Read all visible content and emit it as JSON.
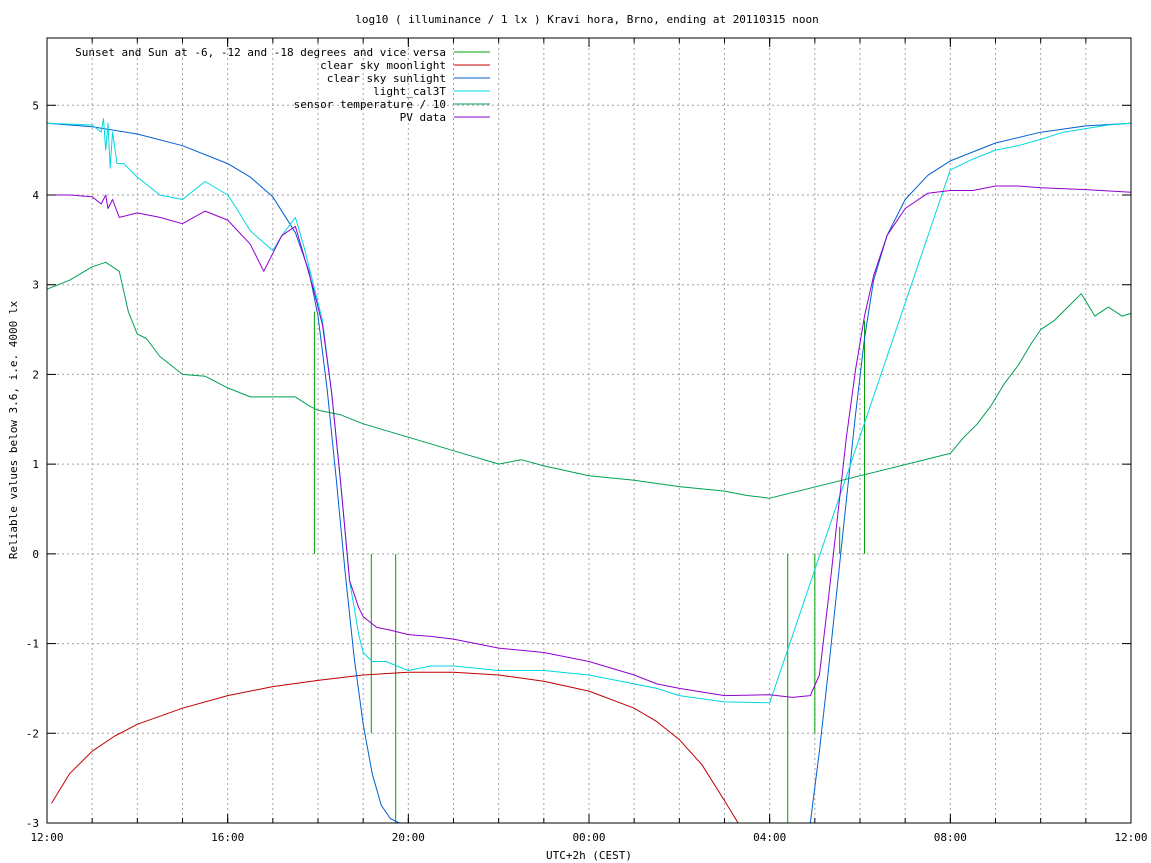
{
  "chart_data": {
    "type": "line",
    "title": "log10 ( illuminance / 1 lx ) Kravi hora, Brno, ending at 20110315 noon",
    "xlabel": "UTC+2h (CEST)",
    "ylabel": "Reliable values below 3.6, i.e. 4000 lx",
    "xlim": [
      0,
      24
    ],
    "ylim": [
      -3,
      5.75
    ],
    "x_ticks": [
      {
        "value": 0,
        "label": "12:00"
      },
      {
        "value": 4,
        "label": "16:00"
      },
      {
        "value": 8,
        "label": "20:00"
      },
      {
        "value": 12,
        "label": "00:00"
      },
      {
        "value": 16,
        "label": "04:00"
      },
      {
        "value": 20,
        "label": "08:00"
      },
      {
        "value": 24,
        "label": "12:00"
      }
    ],
    "x_minor_step": 1,
    "y_ticks": [
      -3,
      -2,
      -1,
      0,
      1,
      2,
      3,
      4,
      5
    ],
    "grid": true,
    "legend_position": "top-left",
    "series": [
      {
        "name": "Sunset and Sun at -6, -12 and -18 degrees and vice versa",
        "color": "#00a000",
        "style": "impulses",
        "impulses": [
          {
            "x": 5.92,
            "y": 2.7
          },
          {
            "x": 7.18,
            "y": -2.0
          },
          {
            "x": 7.72,
            "y": -3.0
          },
          {
            "x": 16.4,
            "y": -3.0
          },
          {
            "x": 17.0,
            "y": -2.0
          },
          {
            "x": 17.55,
            "y": 0.3
          },
          {
            "x": 18.1,
            "y": 2.6
          }
        ]
      },
      {
        "name": "clear sky moonlight",
        "color": "#c00000",
        "x": [
          0.1,
          0.5,
          1,
          1.5,
          2,
          3,
          4,
          5,
          6,
          7,
          8,
          9,
          10,
          11,
          12,
          13,
          13.5,
          14,
          14.5,
          15,
          15.3
        ],
        "y": [
          -2.78,
          -2.45,
          -2.2,
          -2.03,
          -1.9,
          -1.72,
          -1.58,
          -1.48,
          -1.41,
          -1.35,
          -1.32,
          -1.32,
          -1.35,
          -1.42,
          -1.53,
          -1.72,
          -1.87,
          -2.07,
          -2.35,
          -2.75,
          -3.0
        ]
      },
      {
        "name": "clear sky sunlight",
        "color": "#0060d0",
        "x": [
          0,
          1,
          2,
          3,
          4,
          4.5,
          5,
          5.5,
          5.8,
          6.0,
          6.2,
          6.4,
          6.6,
          6.8,
          7.0,
          7.2,
          7.4,
          7.6,
          7.8,
          16.9,
          17.1,
          17.3,
          17.5,
          17.7,
          17.9,
          18.1,
          18.3,
          18.6,
          19.0,
          19.5,
          20,
          21,
          22,
          23,
          24
        ],
        "y": [
          4.8,
          4.76,
          4.68,
          4.55,
          4.35,
          4.2,
          3.98,
          3.58,
          3.15,
          2.65,
          1.85,
          0.85,
          -0.2,
          -1.15,
          -1.9,
          -2.45,
          -2.8,
          -2.95,
          -3.0,
          -3.0,
          -2.2,
          -1.3,
          -0.35,
          0.6,
          1.55,
          2.4,
          3.05,
          3.55,
          3.95,
          4.22,
          4.38,
          4.58,
          4.7,
          4.77,
          4.8
        ]
      },
      {
        "name": "light_cal3T",
        "color": "#00d8e0",
        "x": [
          0,
          0.5,
          1.0,
          1.2,
          1.25,
          1.3,
          1.35,
          1.4,
          1.45,
          1.55,
          1.7,
          2.0,
          2.5,
          3.0,
          3.5,
          4.0,
          4.2,
          4.5,
          5.0,
          5.2,
          5.5,
          5.7,
          5.9,
          6.1,
          6.3,
          6.5,
          6.7,
          6.9,
          7.0,
          7.2,
          7.5,
          8.0,
          8.5,
          9.0,
          10.0,
          11.0,
          12.0,
          13.0,
          13.5,
          14.0,
          15.0,
          16.0,
          20.0,
          20.5,
          21.0,
          21.5,
          22.0,
          22.5,
          23.0,
          23.5,
          24.0
        ],
        "y": [
          4.8,
          4.79,
          4.78,
          4.7,
          4.85,
          4.5,
          4.8,
          4.3,
          4.7,
          4.35,
          4.35,
          4.2,
          4.0,
          3.95,
          4.15,
          4.0,
          3.85,
          3.6,
          3.38,
          3.55,
          3.75,
          3.4,
          3.0,
          2.6,
          1.8,
          0.8,
          -0.3,
          -0.9,
          -1.1,
          -1.2,
          -1.2,
          -1.3,
          -1.25,
          -1.25,
          -1.3,
          -1.3,
          -1.35,
          -1.45,
          -1.5,
          -1.58,
          -1.65,
          -1.66,
          4.28,
          4.4,
          4.5,
          4.55,
          4.62,
          4.7,
          4.74,
          4.78,
          4.8
        ]
      },
      {
        "name": "sensor temperature / 10",
        "color": "#00a050",
        "x": [
          0,
          0.5,
          1.0,
          1.3,
          1.6,
          1.8,
          2.0,
          2.2,
          2.5,
          3.0,
          3.5,
          4.0,
          4.5,
          5.0,
          5.5,
          5.8,
          6.0,
          6.5,
          7.0,
          8.0,
          9.0,
          10.0,
          10.5,
          11.0,
          12.0,
          13.0,
          14.0,
          15.0,
          15.5,
          16.0,
          20.0,
          20.3,
          20.6,
          20.9,
          21.2,
          21.5,
          21.8,
          22.0,
          22.3,
          22.6,
          22.9,
          23.2,
          23.5,
          23.8,
          24.0
        ],
        "y": [
          2.95,
          3.05,
          3.2,
          3.25,
          3.15,
          2.7,
          2.45,
          2.4,
          2.2,
          2.0,
          1.98,
          1.85,
          1.75,
          1.75,
          1.75,
          1.65,
          1.6,
          1.55,
          1.45,
          1.3,
          1.15,
          1.0,
          1.05,
          0.98,
          0.87,
          0.82,
          0.75,
          0.7,
          0.65,
          0.62,
          1.12,
          1.3,
          1.45,
          1.65,
          1.9,
          2.1,
          2.35,
          2.5,
          2.6,
          2.75,
          2.9,
          2.65,
          2.75,
          2.65,
          2.68
        ]
      },
      {
        "name": "PV data",
        "color": "#9000d0",
        "x": [
          0,
          0.5,
          1.0,
          1.2,
          1.3,
          1.35,
          1.45,
          1.6,
          2.0,
          2.5,
          3.0,
          3.5,
          4.0,
          4.5,
          4.8,
          5.0,
          5.2,
          5.5,
          5.7,
          5.9,
          6.1,
          6.3,
          6.5,
          6.7,
          6.9,
          7.0,
          7.3,
          7.6,
          8.0,
          8.5,
          9.0,
          10.0,
          11.0,
          12.0,
          13.0,
          13.5,
          14.0,
          15.0,
          16.0,
          16.5,
          16.9,
          17.1,
          17.3,
          17.5,
          17.7,
          17.9,
          18.1,
          18.3,
          18.6,
          19.0,
          19.5,
          20.0,
          20.5,
          21.0,
          21.5,
          22.0,
          23.0,
          24.0
        ],
        "y": [
          4.0,
          4.0,
          3.98,
          3.9,
          4.0,
          3.85,
          3.95,
          3.75,
          3.8,
          3.75,
          3.68,
          3.82,
          3.72,
          3.45,
          3.15,
          3.35,
          3.55,
          3.65,
          3.3,
          2.95,
          2.55,
          1.8,
          0.8,
          -0.3,
          -0.6,
          -0.7,
          -0.82,
          -0.85,
          -0.9,
          -0.92,
          -0.95,
          -1.05,
          -1.1,
          -1.2,
          -1.35,
          -1.45,
          -1.5,
          -1.58,
          -1.57,
          -1.6,
          -1.58,
          -1.35,
          -0.5,
          0.4,
          1.3,
          2.05,
          2.65,
          3.1,
          3.55,
          3.85,
          4.02,
          4.05,
          4.05,
          4.1,
          4.1,
          4.08,
          4.06,
          4.03
        ]
      }
    ]
  }
}
